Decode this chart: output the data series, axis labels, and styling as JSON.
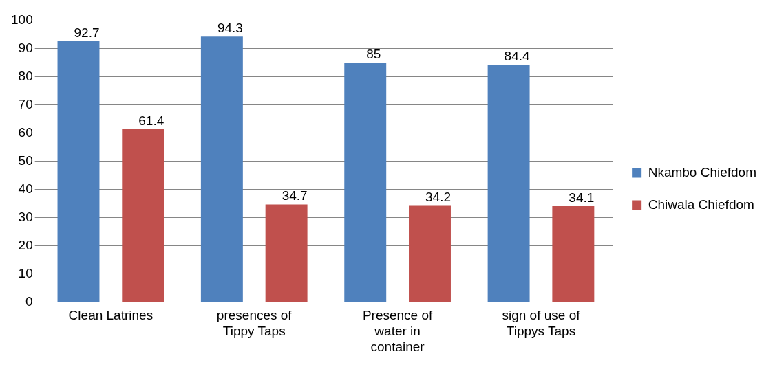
{
  "chart_data": {
    "type": "bar",
    "categories": [
      "Clean Latrines",
      "presences of Tippy Taps",
      "Presence of water in container",
      "sign of use of Tippys Taps"
    ],
    "series": [
      {
        "name": "Nkambo Chiefdom",
        "color": "#4f81bd",
        "values": [
          92.7,
          94.3,
          85,
          84.4
        ]
      },
      {
        "name": "Chiwala Chiefdom",
        "color": "#c0504d",
        "values": [
          61.4,
          34.7,
          34.2,
          34.1
        ]
      }
    ],
    "ylim": [
      0,
      100
    ],
    "yticks": [
      0,
      10,
      20,
      30,
      40,
      50,
      60,
      70,
      80,
      90,
      100
    ],
    "grid": "y",
    "legend": "right",
    "data_labels": true
  }
}
